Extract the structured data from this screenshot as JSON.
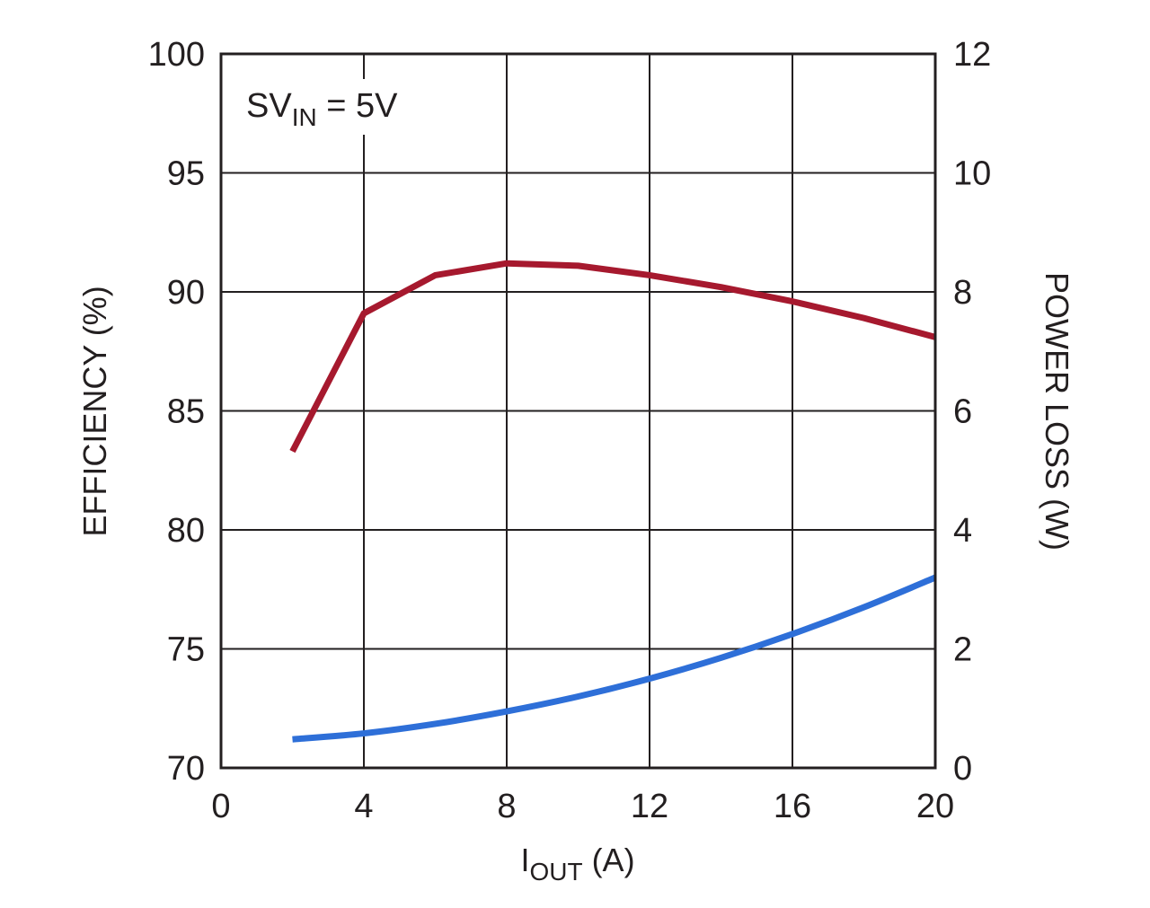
{
  "chart_data": {
    "type": "line",
    "title": "",
    "annotation": {
      "main": "SV",
      "sub": "IN",
      "rest": " = 5V"
    },
    "xlabel": {
      "main": "I",
      "sub": "OUT",
      "rest": " (A)"
    },
    "ylabel_left": "EFFICIENCY (%)",
    "ylabel_right": "POWER LOSS (W)",
    "xlim": [
      0,
      20
    ],
    "ylim_left": [
      70,
      100
    ],
    "ylim_right": [
      0,
      12
    ],
    "x_ticks": [
      "0",
      "4",
      "8",
      "12",
      "16",
      "20"
    ],
    "y_ticks_left": [
      "70",
      "75",
      "80",
      "85",
      "90",
      "95",
      "100"
    ],
    "y_ticks_right": [
      "0",
      "2",
      "4",
      "6",
      "8",
      "10",
      "12"
    ],
    "grid": true,
    "series": [
      {
        "axis": "left",
        "color": "#a6192e",
        "x": [
          2,
          4,
          6,
          8,
          10,
          12,
          14,
          16,
          18,
          20
        ],
        "values": [
          83.3,
          89.1,
          90.7,
          91.2,
          91.1,
          90.7,
          90.2,
          89.6,
          88.9,
          88.1
        ]
      },
      {
        "axis": "right",
        "color": "#2e6fd8",
        "x": [
          2,
          4,
          6,
          8,
          10,
          12,
          14,
          16,
          18,
          20
        ],
        "values": [
          0.48,
          0.58,
          0.74,
          0.95,
          1.2,
          1.5,
          1.85,
          2.25,
          2.7,
          3.2
        ]
      }
    ]
  }
}
